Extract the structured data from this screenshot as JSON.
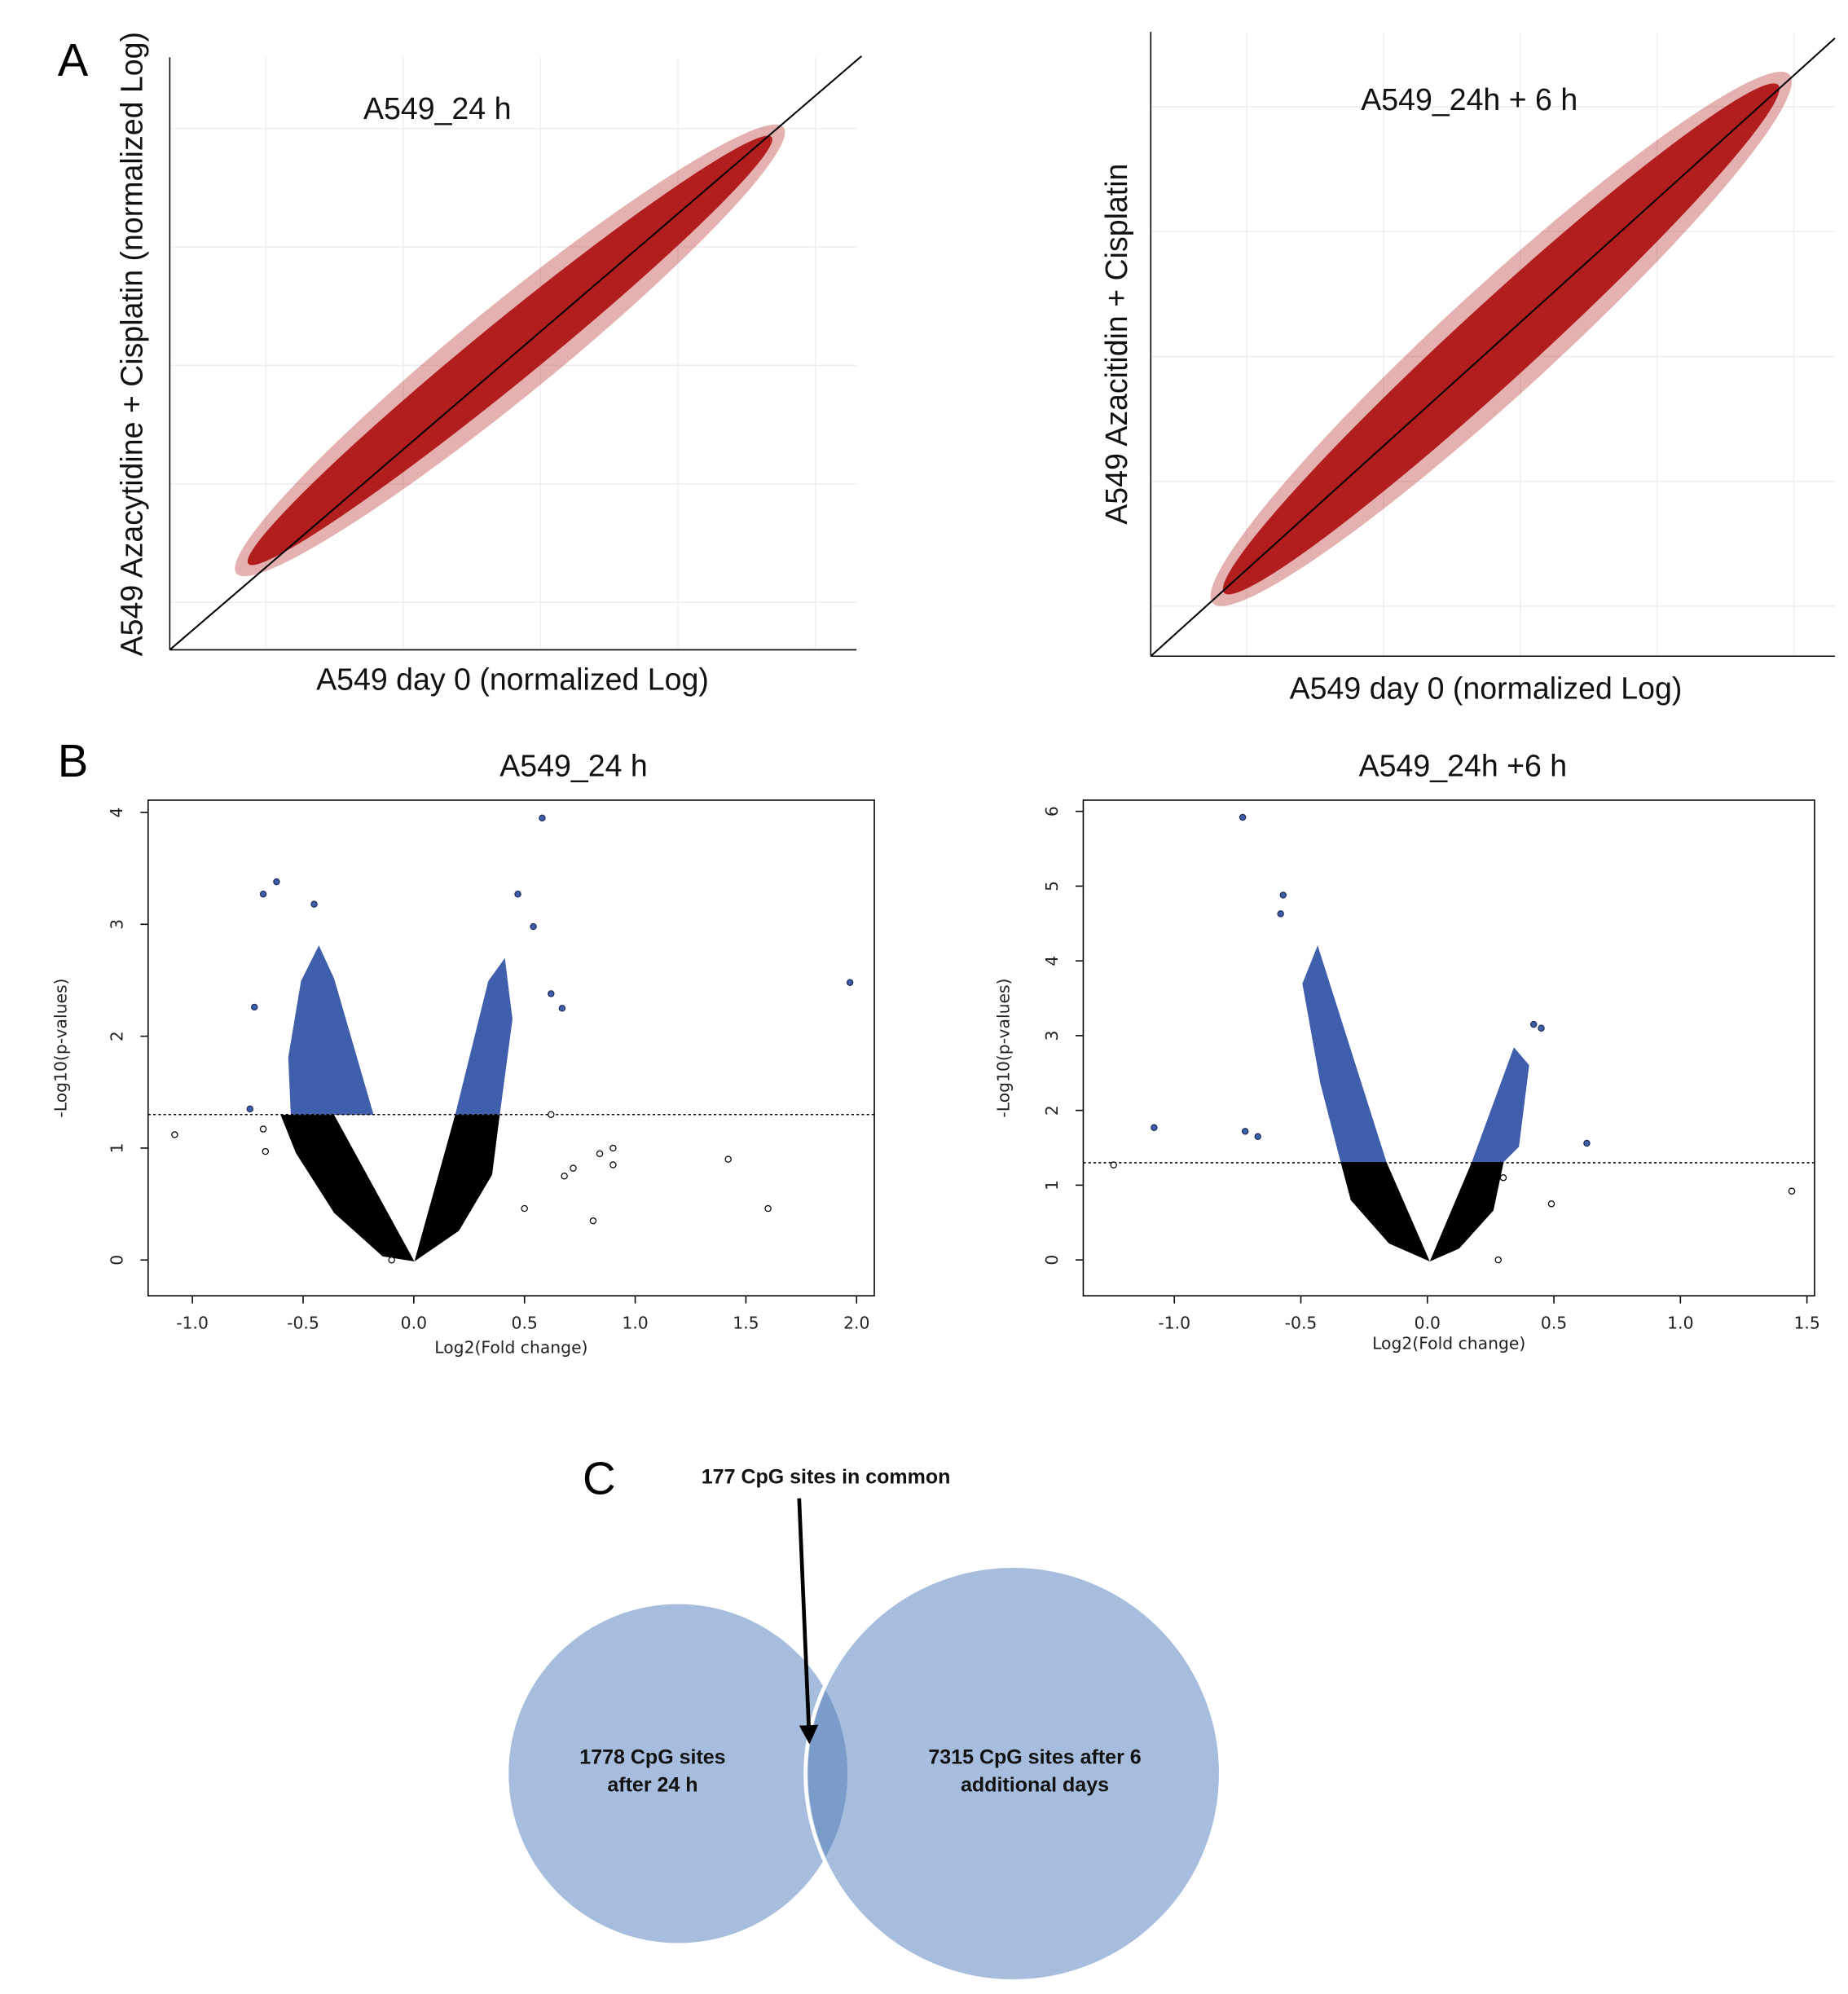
{
  "panel_labels": [
    "A",
    "B",
    "C"
  ],
  "chart_data": [
    {
      "type": "density-scatter",
      "title": "A549_24 h",
      "x_label": "A549 day 0 (normalized Log)",
      "y_label": "A549 Azacytidine + Cisplatin (normalized Log)",
      "color": "#b21e1e"
    },
    {
      "type": "density-scatter",
      "title": "A549_24h + 6 h",
      "x_label": "A549 day 0 (normalized Log)",
      "y_label": "A549 Azacitidin + Cisplatin",
      "color": "#b21e1e"
    },
    {
      "type": "volcano",
      "title": "A549_24 h",
      "x_label": "Log2(Fold change)",
      "y_label": "-Log10(p-values)",
      "xlim": [
        -1.2,
        2.08
      ],
      "ylim": [
        -0.32,
        4.11
      ],
      "xticks": [
        {
          "value": -1,
          "label": "-1.0"
        },
        {
          "value": -0.5,
          "label": "-0.5"
        },
        {
          "value": 0,
          "label": "0.0"
        },
        {
          "value": 0.5,
          "label": "0.5"
        },
        {
          "value": 1,
          "label": "1.0"
        },
        {
          "value": 1.5,
          "label": "1.5"
        },
        {
          "value": 2,
          "label": "2.0"
        }
      ],
      "yticks": [
        0,
        1,
        2,
        3,
        4
      ],
      "threshold": 1.3,
      "series": [
        {
          "color": "#3f5eab",
          "filled": true,
          "x": [
            0.58,
            -0.62,
            -0.68,
            0.47,
            -0.45,
            0.54,
            1.97,
            0.62,
            -0.72,
            0.67,
            -0.74
          ],
          "values": [
            3.95,
            3.38,
            3.27,
            3.27,
            3.18,
            2.98,
            2.48,
            2.38,
            2.26,
            2.25,
            1.35
          ]
        },
        {
          "color": "#000000",
          "filled": false,
          "x": [
            -1.08,
            -0.68,
            -0.67,
            0.62,
            0.72,
            0.84,
            0.9,
            0.9,
            1.42,
            1.6,
            0.81,
            0.5,
            0.68,
            -0.1
          ],
          "values": [
            1.12,
            1.17,
            0.97,
            1.3,
            0.82,
            0.95,
            1.0,
            0.85,
            0.9,
            0.46,
            0.35,
            0.46,
            0.75,
            0.0
          ]
        }
      ]
    },
    {
      "type": "volcano",
      "title": "A549_24h +6 h",
      "x_label": "Log2(Fold change)",
      "y_label": "-Log10(p-values)",
      "xlim": [
        -1.36,
        1.53
      ],
      "ylim": [
        -0.48,
        6.15
      ],
      "xticks": [
        {
          "value": -1,
          "label": "-1.0"
        },
        {
          "value": -0.5,
          "label": "-0.5"
        },
        {
          "value": 0,
          "label": "0.0"
        },
        {
          "value": 0.5,
          "label": "0.5"
        },
        {
          "value": 1,
          "label": "1.0"
        },
        {
          "value": 1.5,
          "label": "1.5"
        }
      ],
      "yticks": [
        0,
        1,
        2,
        3,
        4,
        5,
        6
      ],
      "threshold": 1.3,
      "series": [
        {
          "color": "#3f5eab",
          "filled": true,
          "x": [
            -0.73,
            -0.57,
            -0.58,
            -1.08,
            -0.72,
            -0.67,
            0.63,
            0.45,
            0.42
          ],
          "values": [
            5.92,
            4.88,
            4.63,
            1.77,
            1.72,
            1.65,
            1.56,
            3.1,
            3.15
          ]
        },
        {
          "color": "#000000",
          "filled": false,
          "x": [
            -1.24,
            1.44,
            0.49,
            0.28,
            0.3
          ],
          "values": [
            1.27,
            0.92,
            0.75,
            0.0,
            1.1
          ]
        }
      ]
    },
    {
      "type": "venn",
      "annotation": "177 CpG sites in common",
      "color": "#a6bddd",
      "overlap_color": "#7b9bcb",
      "sets": [
        {
          "label": [
            "1778 CpG sites",
            "after 24 h"
          ]
        },
        {
          "label": [
            "7315 CpG sites after 6",
            "additional  days"
          ]
        }
      ]
    }
  ]
}
